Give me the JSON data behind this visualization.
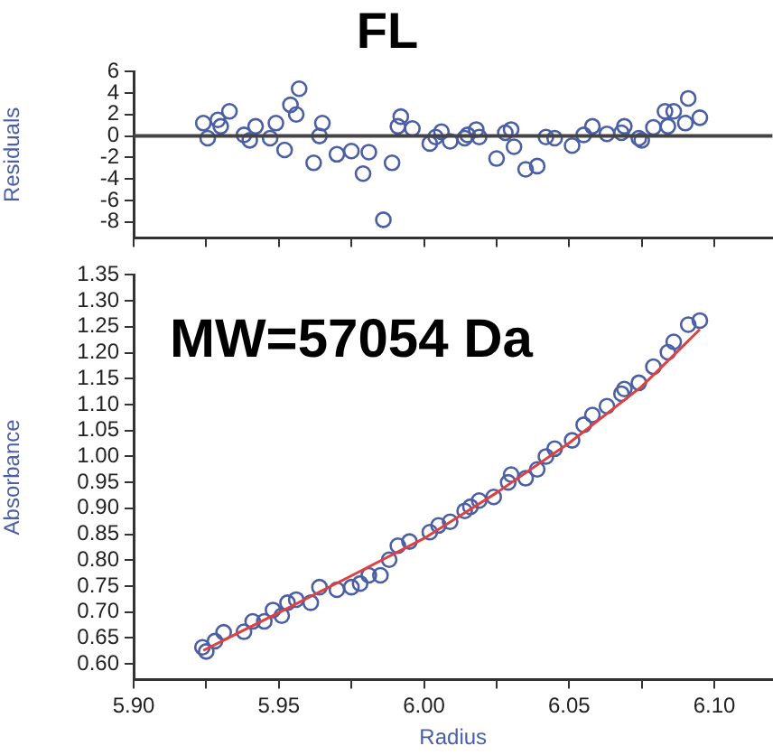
{
  "chart_data": [
    {
      "type": "scatter",
      "title": "FL",
      "ylabel": "Residuals",
      "xlim": [
        5.9,
        6.12
      ],
      "ylim": [
        -9.5,
        6
      ],
      "tick_labels": "y",
      "grid": false,
      "legend": false,
      "xticks": [
        5.9,
        {
          "value": 5.925,
          "label": null
        },
        5.95,
        {
          "value": 5.975,
          "label": null
        },
        6.0,
        {
          "value": 6.025,
          "label": null
        },
        6.05,
        {
          "value": 6.075,
          "label": null
        },
        6.1
      ],
      "yticks": [
        -8,
        -6,
        -4,
        -2,
        0,
        2,
        4,
        6
      ],
      "ref_lines": [
        {
          "axis": "y",
          "value": 0,
          "color": "#444444"
        }
      ],
      "series": [
        {
          "type": "scatter",
          "color": "#4a5fa5",
          "marker": "circle",
          "x": [
            5.924,
            5.9255,
            5.929,
            5.93,
            5.933,
            5.938,
            5.94,
            5.942,
            5.947,
            5.949,
            5.952,
            5.954,
            5.956,
            5.957,
            5.962,
            5.964,
            5.965,
            5.97,
            5.975,
            5.979,
            5.981,
            5.986,
            5.989,
            5.991,
            5.992,
            5.996,
            6.002,
            6.004,
            6.006,
            6.009,
            6.014,
            6.015,
            6.018,
            6.019,
            6.025,
            6.028,
            6.03,
            6.031,
            6.035,
            6.039,
            6.042,
            6.045,
            6.051,
            6.055,
            6.058,
            6.063,
            6.068,
            6.069,
            6.074,
            6.075,
            6.079,
            6.083,
            6.084,
            6.086,
            6.09,
            6.091,
            6.095
          ],
          "values": [
            1.2,
            -0.2,
            1.5,
            0.9,
            2.3,
            0.1,
            -0.4,
            0.9,
            -0.2,
            1.2,
            -1.3,
            2.9,
            2.0,
            4.4,
            -2.5,
            0.0,
            1.2,
            -1.7,
            -1.4,
            -3.5,
            -1.5,
            -7.8,
            -2.5,
            0.9,
            1.8,
            0.7,
            -0.7,
            -0.1,
            0.4,
            -0.5,
            -0.2,
            0.1,
            0.6,
            -0.1,
            -2.1,
            0.3,
            0.6,
            -1.0,
            -3.1,
            -2.8,
            -0.1,
            -0.2,
            -0.9,
            0.1,
            0.9,
            0.2,
            0.3,
            0.9,
            -0.2,
            -0.4,
            0.8,
            2.3,
            0.9,
            2.3,
            1.2,
            3.5,
            1.7
          ]
        }
      ]
    },
    {
      "type": "scatter",
      "xlabel": "Radius",
      "ylabel": "Absorbance",
      "xlim": [
        5.9,
        6.12
      ],
      "ylim": [
        0.57,
        1.35
      ],
      "grid": false,
      "legend": false,
      "annotations": [
        "MW=57054 Da"
      ],
      "xticks": [
        {
          "value": 5.9,
          "label": "5.90"
        },
        {
          "value": 5.925,
          "label": null
        },
        5.95,
        {
          "value": 5.975,
          "label": null
        },
        {
          "value": 6.0,
          "label": "6.00"
        },
        {
          "value": 6.025,
          "label": null
        },
        6.05,
        {
          "value": 6.075,
          "label": null
        },
        {
          "value": 6.1,
          "label": "6.10"
        }
      ],
      "yticks": [
        {
          "value": 0.6,
          "label": "0.60"
        },
        0.65,
        {
          "value": 0.7,
          "label": "0.70"
        },
        0.75,
        {
          "value": 0.8,
          "label": "0.80"
        },
        0.85,
        {
          "value": 0.9,
          "label": "0.90"
        },
        0.95,
        {
          "value": 1.0,
          "label": "1.00"
        },
        1.05,
        {
          "value": 1.1,
          "label": "1.10"
        },
        1.15,
        {
          "value": 1.2,
          "label": "1.20"
        },
        1.25,
        {
          "value": 1.3,
          "label": "1.30"
        },
        1.35
      ],
      "series": [
        {
          "type": "line",
          "color": "#e0403f",
          "marker": "none",
          "x": [
            5.924,
            5.95,
            5.975,
            6.0,
            6.025,
            6.05,
            6.075,
            6.095
          ],
          "values": [
            0.626,
            0.699,
            0.77,
            0.842,
            0.93,
            1.026,
            1.135,
            1.245
          ]
        },
        {
          "type": "scatter",
          "color": "#4a5fa5",
          "marker": "circle",
          "x": [
            5.9237,
            5.925,
            5.928,
            5.931,
            5.938,
            5.941,
            5.945,
            5.948,
            5.951,
            5.953,
            5.956,
            5.961,
            5.964,
            5.97,
            5.975,
            5.978,
            5.981,
            5.985,
            5.988,
            5.991,
            5.995,
            6.002,
            6.005,
            6.009,
            6.014,
            6.016,
            6.019,
            6.024,
            6.029,
            6.03,
            6.035,
            6.039,
            6.042,
            6.045,
            6.051,
            6.055,
            6.058,
            6.063,
            6.068,
            6.069,
            6.074,
            6.079,
            6.084,
            6.086,
            6.091,
            6.095
          ],
          "values": [
            0.632,
            0.624,
            0.644,
            0.661,
            0.662,
            0.682,
            0.682,
            0.704,
            0.693,
            0.718,
            0.724,
            0.718,
            0.748,
            0.743,
            0.748,
            0.755,
            0.771,
            0.771,
            0.801,
            0.828,
            0.836,
            0.854,
            0.867,
            0.874,
            0.895,
            0.903,
            0.915,
            0.922,
            0.95,
            0.965,
            0.958,
            0.975,
            1.0,
            1.015,
            1.031,
            1.061,
            1.08,
            1.097,
            1.121,
            1.13,
            1.142,
            1.173,
            1.201,
            1.221,
            1.254,
            1.262
          ]
        }
      ]
    }
  ]
}
